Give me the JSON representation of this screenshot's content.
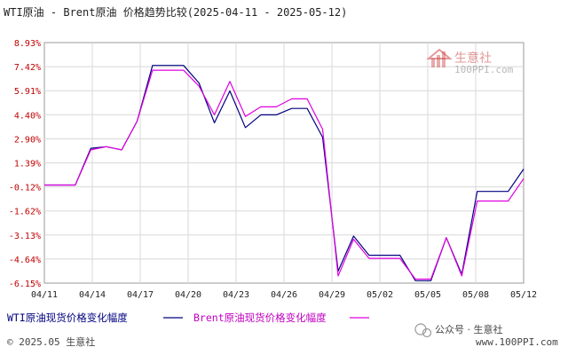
{
  "chart_data": {
    "type": "line",
    "title": "WTI原油 - Brent原油 价格趋势比较(2025-04-11 - 2025-05-12)",
    "xlabel": "",
    "ylabel": "",
    "y_ticks": [
      "8.93%",
      "7.42%",
      "5.91%",
      "4.40%",
      "2.90%",
      "1.39%",
      "-0.12%",
      "-1.62%",
      "-3.13%",
      "-4.64%",
      "-6.15%"
    ],
    "ylim": [
      -6.15,
      8.93
    ],
    "x_tick_labels": [
      "04/11",
      "04/14",
      "04/17",
      "04/20",
      "04/23",
      "04/26",
      "04/29",
      "05/02",
      "05/05",
      "05/08",
      "05/12"
    ],
    "grid": true,
    "legend_position": "bottom-left",
    "x_day_range": [
      0,
      31
    ],
    "series": [
      {
        "name": "WTI原油现货价格变化幅度",
        "color": "#000080",
        "x": [
          0,
          2,
          3,
          4,
          5,
          6,
          7,
          8,
          9,
          10,
          11,
          12,
          13,
          14,
          15,
          16,
          17,
          18,
          19,
          20,
          21,
          22,
          23,
          24,
          25,
          26,
          27,
          28,
          29,
          30,
          31
        ],
        "values": [
          0,
          0,
          2.3,
          2.4,
          2.2,
          4.0,
          7.5,
          7.5,
          7.5,
          6.4,
          3.9,
          5.9,
          3.6,
          4.4,
          4.4,
          4.8,
          4.8,
          3.0,
          -5.4,
          -3.2,
          -4.4,
          -4.4,
          -4.4,
          -6.0,
          -6.0,
          -3.3,
          -5.6,
          -0.4,
          -0.4,
          -0.4,
          1.0
        ]
      },
      {
        "name": "Brent原油现货价格变化幅度",
        "color": "#e000e0",
        "x": [
          0,
          2,
          3,
          4,
          5,
          6,
          7,
          8,
          9,
          10,
          11,
          12,
          13,
          14,
          15,
          16,
          17,
          18,
          19,
          20,
          21,
          22,
          23,
          24,
          25,
          26,
          27,
          28,
          29,
          30,
          31
        ],
        "values": [
          0,
          0,
          2.2,
          2.4,
          2.2,
          4.0,
          7.2,
          7.2,
          7.2,
          6.2,
          4.4,
          6.5,
          4.3,
          4.9,
          4.9,
          5.4,
          5.4,
          3.5,
          -5.7,
          -3.4,
          -4.6,
          -4.6,
          -4.6,
          -5.9,
          -5.9,
          -3.3,
          -5.7,
          -1.0,
          -1.0,
          -1.0,
          0.4
        ]
      }
    ]
  },
  "legend": {
    "wti": "WTI原油现货价格变化幅度",
    "brent": "Brent原油现货价格变化幅度"
  },
  "footer": {
    "copyright": "© 2025.05 生意社",
    "wechat": "公众号 · 生意社",
    "url": "www.100PPI.com"
  },
  "watermark": {
    "name": "生意社",
    "url": "100PPI.com"
  }
}
